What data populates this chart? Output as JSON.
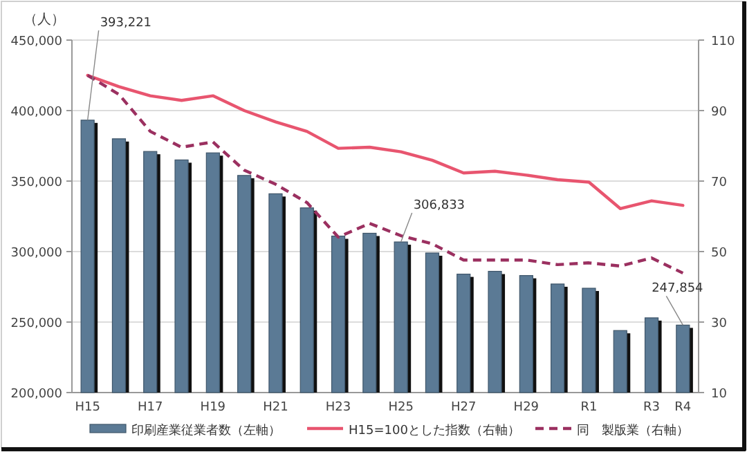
{
  "chart_data": {
    "type": "bar",
    "ylabel": "（人）",
    "categories": [
      "H15",
      null,
      "H17",
      null,
      "H19",
      null,
      "H21",
      null,
      "H23",
      null,
      "H25",
      null,
      "H27",
      null,
      "H29",
      null,
      "R1",
      null,
      "R3",
      "R4"
    ],
    "series": [
      {
        "name": "印刷産業従業者数（左軸）",
        "color": "#5b7a95",
        "values": [
          393221,
          380000,
          371000,
          365000,
          370000,
          354000,
          341000,
          331000,
          311000,
          313000,
          306833,
          299000,
          284000,
          286000,
          283000,
          277000,
          274000,
          244000,
          253000,
          247854
        ],
        "value_labels": [
          "393,221",
          null,
          null,
          null,
          null,
          null,
          null,
          null,
          null,
          null,
          "306,833",
          null,
          null,
          null,
          null,
          null,
          null,
          null,
          null,
          "247,854"
        ]
      },
      {
        "name": "H15=100とした指数（右軸）",
        "type": "line",
        "axis": "y2",
        "color": "#e8556f",
        "line_style": "solid",
        "values": [
          100,
          96.8,
          94.2,
          92.9,
          94.2,
          90,
          86.8,
          84.1,
          79.3,
          79.6,
          78.3,
          75.9,
          72.3,
          72.8,
          71.7,
          70.4,
          69.7,
          62.2,
          64.4,
          63.1
        ]
      },
      {
        "name": "同　製版業（右軸）",
        "type": "line",
        "axis": "y2",
        "color": "#9b3060",
        "line_style": "dashed",
        "values": [
          100,
          94.6,
          84.1,
          79.6,
          81.1,
          73.1,
          69.1,
          63.9,
          54.1,
          58,
          54.5,
          52.2,
          47.6,
          47.6,
          47.6,
          46.3,
          46.8,
          45.9,
          48.2,
          43.9
        ]
      }
    ],
    "ylim": [
      200000,
      450000
    ],
    "yticks": [
      {
        "value": 200000,
        "label": "200,000"
      },
      {
        "value": 250000,
        "label": "250,000"
      },
      {
        "value": 300000,
        "label": "300,000"
      },
      {
        "value": 350000,
        "label": "350,000"
      },
      {
        "value": 400000,
        "label": "400,000"
      },
      {
        "value": 450000,
        "label": "450,000"
      }
    ],
    "y2lim": [
      10,
      110
    ],
    "y2ticks": [
      10,
      30,
      50,
      70,
      90,
      110
    ],
    "grid": "y",
    "legend": "bottom",
    "marker": "none"
  }
}
